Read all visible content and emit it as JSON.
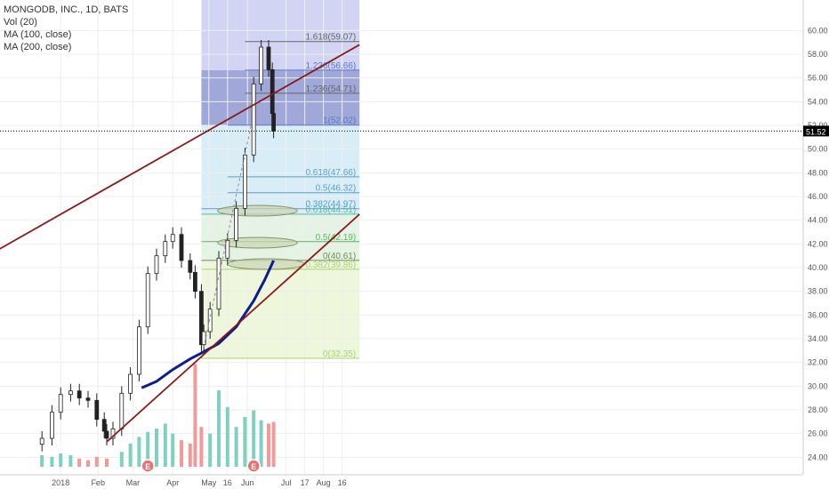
{
  "legend": {
    "symbol": "MONGODB, INC., 1D, BATS",
    "volume": "Vol (20)",
    "ma100": "MA (100, close)",
    "ma200": "MA (200, close)"
  },
  "chart_data": {
    "type": "candlestick",
    "ylim": [
      23.2,
      61.0
    ],
    "y_ticks": [
      24.0,
      26.0,
      28.0,
      30.0,
      32.0,
      34.0,
      36.0,
      38.0,
      40.0,
      42.0,
      44.0,
      46.0,
      48.0,
      50.0,
      52.0,
      54.0,
      56.0,
      58.0,
      60.0
    ],
    "x_ticks": [
      {
        "label": "2018",
        "date": "2018-01-02"
      },
      {
        "label": "Feb",
        "date": "2018-02-01"
      },
      {
        "label": "Mar",
        "date": "2018-03-01"
      },
      {
        "label": "Apr",
        "date": "2018-04-02"
      },
      {
        "label": "May",
        "date": "2018-05-01"
      },
      {
        "label": "16",
        "date": "2018-05-16"
      },
      {
        "label": "Jun",
        "date": "2018-06-01"
      },
      {
        "label": "Jul",
        "date": "2018-07-02"
      },
      {
        "label": "17",
        "date": "2018-07-17"
      },
      {
        "label": "Aug",
        "date": "2018-08-01"
      },
      {
        "label": "16",
        "date": "2018-08-16"
      }
    ],
    "last_price": {
      "value": 51.52,
      "label": "51.52"
    },
    "close_series": [
      {
        "date": "2017-12-18",
        "value": 25.6
      },
      {
        "date": "2017-12-26",
        "value": 27.8
      },
      {
        "date": "2018-01-02",
        "value": 29.3
      },
      {
        "date": "2018-01-10",
        "value": 29.6
      },
      {
        "date": "2018-01-17",
        "value": 29.0
      },
      {
        "date": "2018-01-24",
        "value": 28.8
      },
      {
        "date": "2018-01-31",
        "value": 27.2
      },
      {
        "date": "2018-02-06",
        "value": 26.2
      },
      {
        "date": "2018-02-08",
        "value": 25.6
      },
      {
        "date": "2018-02-13",
        "value": 26.4
      },
      {
        "date": "2018-02-20",
        "value": 29.4
      },
      {
        "date": "2018-02-27",
        "value": 31.0
      },
      {
        "date": "2018-03-06",
        "value": 35.0
      },
      {
        "date": "2018-03-13",
        "value": 39.5
      },
      {
        "date": "2018-03-20",
        "value": 41.0
      },
      {
        "date": "2018-03-27",
        "value": 42.2
      },
      {
        "date": "2018-04-02",
        "value": 42.8
      },
      {
        "date": "2018-04-09",
        "value": 40.6
      },
      {
        "date": "2018-04-16",
        "value": 39.6
      },
      {
        "date": "2018-04-20",
        "value": 38.0
      },
      {
        "date": "2018-04-25",
        "value": 33.5
      },
      {
        "date": "2018-04-27",
        "value": 34.6
      },
      {
        "date": "2018-05-02",
        "value": 36.5
      },
      {
        "date": "2018-05-09",
        "value": 40.8
      },
      {
        "date": "2018-05-16",
        "value": 42.3
      },
      {
        "date": "2018-05-23",
        "value": 45.0
      },
      {
        "date": "2018-05-30",
        "value": 49.5
      },
      {
        "date": "2018-06-06",
        "value": 55.5
      },
      {
        "date": "2018-06-12",
        "value": 58.6
      },
      {
        "date": "2018-06-18",
        "value": 56.7
      },
      {
        "date": "2018-06-21",
        "value": 53.0
      },
      {
        "date": "2018-06-22",
        "value": 51.52
      }
    ],
    "volume_bars": [
      {
        "date": "2017-12-18",
        "value": 0.7
      },
      {
        "date": "2017-12-26",
        "value": 0.6
      },
      {
        "date": "2018-01-02",
        "value": 0.8
      },
      {
        "date": "2018-01-10",
        "value": 0.7
      },
      {
        "date": "2018-01-17",
        "value": 0.5
      },
      {
        "date": "2018-01-24",
        "value": 0.4
      },
      {
        "date": "2018-01-31",
        "value": 0.6
      },
      {
        "date": "2018-02-08",
        "value": 0.5
      },
      {
        "date": "2018-02-20",
        "value": 0.9
      },
      {
        "date": "2018-02-27",
        "value": 1.4
      },
      {
        "date": "2018-03-06",
        "value": 1.8
      },
      {
        "date": "2018-03-13",
        "value": 2.1
      },
      {
        "date": "2018-03-20",
        "value": 2.3
      },
      {
        "date": "2018-03-27",
        "value": 2.6
      },
      {
        "date": "2018-04-02",
        "value": 2.0
      },
      {
        "date": "2018-04-09",
        "value": 1.6
      },
      {
        "date": "2018-04-16",
        "value": 1.4
      },
      {
        "date": "2018-04-20",
        "value": 6.2
      },
      {
        "date": "2018-04-25",
        "value": 2.4
      },
      {
        "date": "2018-05-02",
        "value": 2.0
      },
      {
        "date": "2018-05-09",
        "value": 4.6
      },
      {
        "date": "2018-05-16",
        "value": 3.6
      },
      {
        "date": "2018-05-23",
        "value": 2.4
      },
      {
        "date": "2018-05-30",
        "value": 3.0
      },
      {
        "date": "2018-06-06",
        "value": 3.4
      },
      {
        "date": "2018-06-12",
        "value": 2.8
      },
      {
        "date": "2018-06-18",
        "value": 2.6
      },
      {
        "date": "2018-06-22",
        "value": 2.7
      }
    ],
    "ma100_series": [
      {
        "date": "2018-03-08",
        "value": 29.85
      },
      {
        "date": "2018-03-20",
        "value": 30.4
      },
      {
        "date": "2018-04-02",
        "value": 31.4
      },
      {
        "date": "2018-04-16",
        "value": 32.3
      },
      {
        "date": "2018-04-27",
        "value": 32.9
      },
      {
        "date": "2018-05-09",
        "value": 33.6
      },
      {
        "date": "2018-05-23",
        "value": 35.0
      },
      {
        "date": "2018-06-06",
        "value": 37.2
      },
      {
        "date": "2018-06-15",
        "value": 39.0
      },
      {
        "date": "2018-06-22",
        "value": 40.6
      }
    ],
    "trend_channel": [
      {
        "name": "upper",
        "points": [
          {
            "date": "2017-09-20",
            "value": 38.3
          },
          {
            "date": "2018-08-30",
            "value": 58.8
          }
        ]
      },
      {
        "name": "lower",
        "points": [
          {
            "date": "2018-02-08",
            "value": 25.3
          },
          {
            "date": "2018-08-30",
            "value": 44.5
          }
        ]
      }
    ],
    "fib_lower": {
      "start_date": "2018-04-25",
      "end_date": "2018-08-30",
      "levels": [
        {
          "value": 32.35,
          "label": "0(32.35)",
          "color": "#a7d46f"
        },
        {
          "value": 39.86,
          "label": "0.382(39.86)",
          "color": "#a7d46f"
        },
        {
          "value": 40.61,
          "label": "0(40.61)",
          "color": "#6c8e50"
        },
        {
          "value": 42.19,
          "label": "0.5(42.19)",
          "color": "#5cb85c"
        },
        {
          "value": 44.51,
          "label": "0.618(44.51)",
          "color": "#5cb8a0"
        },
        {
          "value": 44.97,
          "label": "0.382(44.97)",
          "color": "#5aa0c8"
        },
        {
          "value": 46.32,
          "label": "0.5(46.32)",
          "color": "#5aa0c8"
        },
        {
          "value": 47.66,
          "label": "0.618(47.66)",
          "color": "#5aa0c8"
        },
        {
          "value": 52.02,
          "label": "1(52.02)",
          "color": "#5a78c8"
        }
      ]
    },
    "fib_upper": {
      "start_date": "2018-04-25",
      "end_date": "2018-08-30",
      "levels": [
        {
          "value": 54.71,
          "label": "1.236(54.71)",
          "color": "#666666"
        },
        {
          "value": 56.66,
          "label": "1.236(56.66)",
          "color": "#5a78c8"
        },
        {
          "value": 59.07,
          "label": "1.618(59.07)",
          "color": "#666666"
        }
      ]
    },
    "support_zones": [
      {
        "center_date": "2018-06-09",
        "value": 44.8,
        "width_days": 32
      },
      {
        "center_date": "2018-06-09",
        "value": 42.1,
        "width_days": 32
      },
      {
        "center_date": "2018-06-16",
        "value": 40.3,
        "width_days": 31
      }
    ],
    "earnings_markers": [
      {
        "date": "2018-03-13",
        "label": "E"
      },
      {
        "date": "2018-06-06",
        "label": "E"
      }
    ],
    "colors": {
      "up": "#26a69a",
      "down": "#ef5350",
      "channel": "#8b1a1a",
      "ma100": "#0d1e8c",
      "last_price_bg": "#000000"
    }
  }
}
